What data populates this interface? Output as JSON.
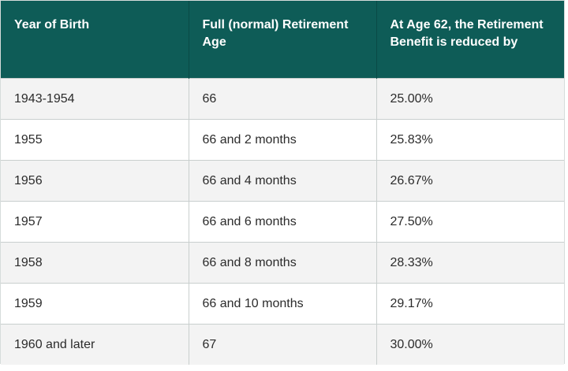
{
  "table": {
    "headers": [
      "Year of Birth",
      "Full (normal) Retirement Age",
      "At Age 62, the Retirement Benefit is reduced by"
    ],
    "rows": [
      [
        "1943-1954",
        "66",
        "25.00%"
      ],
      [
        "1955",
        "66 and 2 months",
        "25.83%"
      ],
      [
        "1956",
        "66 and 4 months",
        "26.67%"
      ],
      [
        "1957",
        "66 and 6 months",
        "27.50%"
      ],
      [
        "1958",
        "66 and 8 months",
        "28.33%"
      ],
      [
        "1959",
        "66 and 10 months",
        "29.17%"
      ],
      [
        "1960 and later",
        "67",
        "30.00%"
      ]
    ]
  },
  "colors": {
    "header_background": "#0e5c57",
    "header_text": "#ffffff",
    "row_odd": "#f3f3f3",
    "row_even": "#ffffff"
  }
}
